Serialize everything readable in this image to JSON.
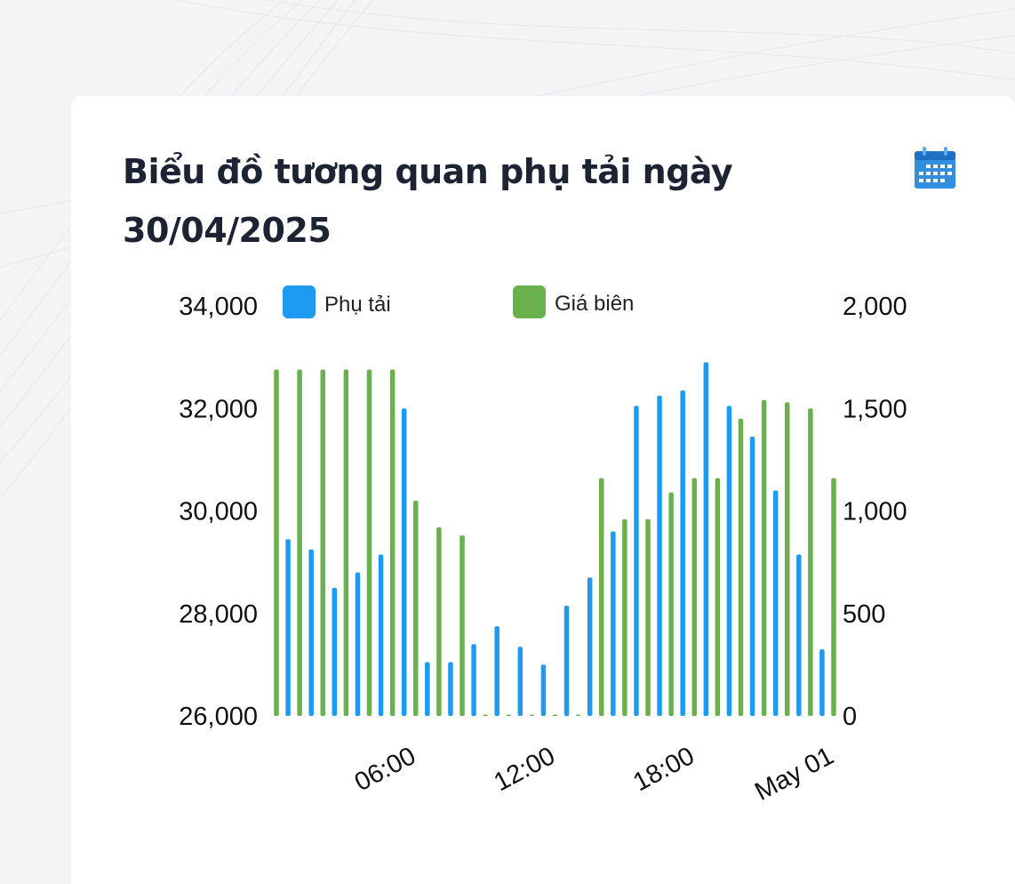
{
  "card": {
    "title": "Biểu đồ tương quan phụ tải ngày 30/04/2025",
    "calendar_icon": "calendar-icon"
  },
  "colors": {
    "load": "#1e9bf0",
    "price": "#6ab04c",
    "title": "#1c2333",
    "background": "#f3f4f6"
  },
  "chart_data": {
    "type": "bar",
    "title": "Biểu đồ tương quan phụ tải ngày 30/04/2025",
    "legend": {
      "position": "top",
      "entries": [
        "Phụ tải",
        "Giá biên"
      ]
    },
    "x_tick_labels": [
      "06:00",
      "12:00",
      "18:00",
      "May 01"
    ],
    "y_left": {
      "ticks": [
        "26,000",
        "28,000",
        "30,000",
        "32,000",
        "34,000"
      ],
      "range": [
        26000,
        34000
      ]
    },
    "y_right": {
      "ticks": [
        "0",
        "500",
        "1,000",
        "1,500",
        "2,000"
      ],
      "range": [
        0,
        2000
      ]
    },
    "x_range_hours": [
      0,
      24
    ],
    "grid": false,
    "series": [
      {
        "name": "Phụ tải",
        "axis": "left",
        "x_hours": [
          0.5,
          1.5,
          2.5,
          3.5,
          4.5,
          5.5,
          6.5,
          7.5,
          8.5,
          9.5,
          10.5,
          11.5,
          12.5,
          13.5,
          14.5,
          15.5,
          16.5,
          17.5,
          18.5,
          19.5,
          20.5,
          21.5,
          22.5,
          23.5
        ],
        "values": [
          29450,
          29250,
          28500,
          28800,
          29150,
          32000,
          27050,
          27050,
          27400,
          27750,
          27350,
          27000,
          28150,
          28700,
          29600,
          32050,
          32250,
          32350,
          32900,
          32050,
          31450,
          30400,
          29150,
          27300
        ]
      },
      {
        "name": "Giá biên",
        "axis": "right",
        "x_hours": [
          0,
          1,
          2,
          3,
          4,
          5,
          6,
          7,
          8,
          9,
          10,
          11,
          12,
          13,
          14,
          15,
          16,
          17,
          18,
          19,
          20,
          21,
          22,
          23,
          24
        ],
        "values": [
          1690,
          1690,
          1690,
          1690,
          1690,
          1690,
          1050,
          920,
          880,
          5,
          5,
          5,
          5,
          5,
          1160,
          960,
          960,
          1090,
          1160,
          1160,
          1450,
          1540,
          1530,
          1500,
          1160
        ]
      }
    ]
  }
}
